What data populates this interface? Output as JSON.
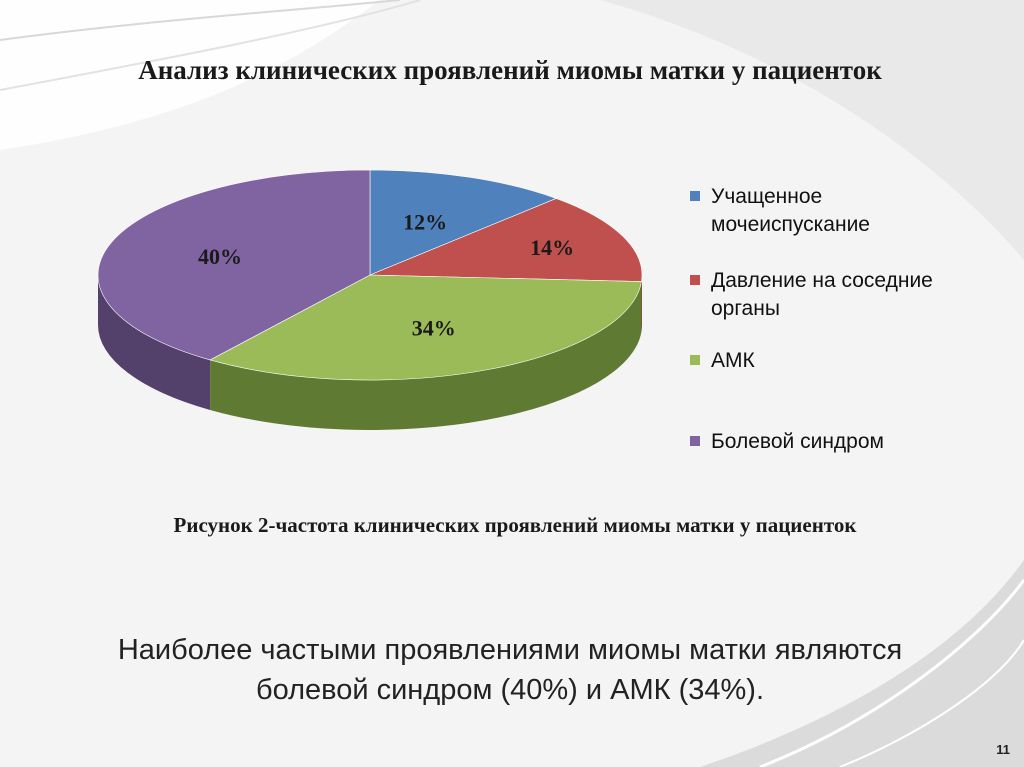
{
  "slide": {
    "title": "Анализ клинических проявлений миомы матки у пациенток",
    "caption": "Рисунок 2-частота клинических проявлений миомы матки у пациенток",
    "conclusion": "Наиболее частыми проявлениями миомы матки являются болевой синдром (40%) и АМК (34%).",
    "page_number": "11"
  },
  "chart_data": {
    "type": "pie",
    "title": "",
    "categories": [
      "Учащенное мочеиспускание",
      "Давление на соседние органы",
      "АМК",
      "Болевой синдром"
    ],
    "values": [
      12,
      14,
      34,
      40
    ],
    "labels": [
      "12%",
      "14%",
      "34%",
      "40%"
    ],
    "colors": [
      "#4f81bd",
      "#c0504d",
      "#9bbb59",
      "#8064a2"
    ],
    "side_colors": [
      "#33557d",
      "#7e3432",
      "#5f7a33",
      "#54416b"
    ],
    "legend_position": "right",
    "style": "3d"
  }
}
